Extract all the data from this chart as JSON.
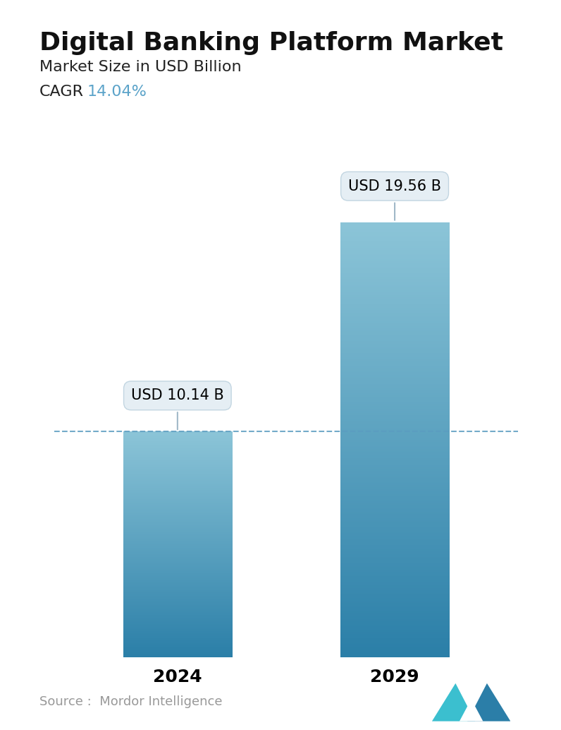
{
  "title": "Digital Banking Platform Market",
  "subtitle": "Market Size in USD Billion",
  "cagr_label": "CAGR",
  "cagr_value": "14.04%",
  "cagr_color": "#5BA3C9",
  "categories": [
    "2024",
    "2029"
  ],
  "values": [
    10.14,
    19.56
  ],
  "bar_labels": [
    "USD 10.14 B",
    "USD 19.56 B"
  ],
  "bar_color_top": "#8CC5D8",
  "bar_color_bottom": "#2B7FA8",
  "dashed_line_color": "#5B9DC0",
  "dashed_line_value": 10.14,
  "source_text": "Source :  Mordor Intelligence",
  "source_color": "#999999",
  "background_color": "#FFFFFF",
  "ylim": [
    0,
    22
  ],
  "title_fontsize": 26,
  "subtitle_fontsize": 16,
  "cagr_fontsize": 16,
  "tick_fontsize": 18,
  "annotation_fontsize": 15,
  "source_fontsize": 13,
  "x_positions": [
    0.28,
    0.72
  ],
  "bar_width": 0.22
}
